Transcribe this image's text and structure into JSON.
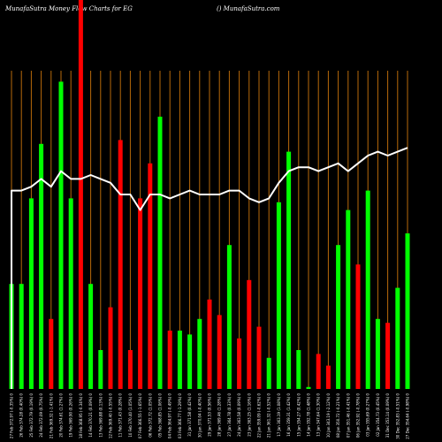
{
  "chart_data": {
    "type": "bar",
    "title_left": "MunafaSutra  Money Flow  Charts for EG",
    "title_right": "() MunafaSutra.com",
    "colors": {
      "up": "#00ff00",
      "down": "#ff0000",
      "line": "#ffffff",
      "grid": "#b86a0a",
      "background": "#000000"
    },
    "ylim": [
      0,
      100
    ],
    "bars": [
      {
        "label": "27 Feb 372.97 (-0.35%) 0",
        "value": 27,
        "color": "up"
      },
      {
        "label": "26 Feb 374.28 (0.40%) 0",
        "value": 27,
        "color": "up"
      },
      {
        "label": "25 Feb 372.79 (0.19%) 0",
        "value": 49,
        "color": "up"
      },
      {
        "label": "24 Feb 372.09 (0.75%) 0",
        "value": 63,
        "color": "up"
      },
      {
        "label": "21 Feb 369.32 (-1.41%) 0",
        "value": 18,
        "color": "down"
      },
      {
        "label": "20 Feb 374.61 (1.27%) 0",
        "value": 79,
        "color": "up"
      },
      {
        "label": "19 Feb 369.90 (0.26%) 0",
        "value": 49,
        "color": "up"
      },
      {
        "label": "18 Feb 368.95 (-0.34%) 0",
        "value": 100,
        "color": "down"
      },
      {
        "label": "14 Feb 370.21 (0.09%) 0",
        "value": 27,
        "color": "up"
      },
      {
        "label": "13 Feb 369.88 (0.13%) 0",
        "value": 10,
        "color": "up"
      },
      {
        "label": "12 Feb 369.40 (-0.55%) 0",
        "value": 21,
        "color": "down"
      },
      {
        "label": "11 Feb 371.43 (0.28%) 0",
        "value": 64,
        "color": "down"
      },
      {
        "label": "10 Feb 370.40 (1.05%) 0",
        "value": 10,
        "color": "down"
      },
      {
        "label": "07 Feb 366.55 (-1.65%) 0",
        "value": 49,
        "color": "down"
      },
      {
        "label": "06 Feb 372.72 (1.05%) 0",
        "value": 58,
        "color": "down"
      },
      {
        "label": "05 Feb 368.85 (1.06%) 0",
        "value": 70,
        "color": "up"
      },
      {
        "label": "04 Feb 364.97 (-0.49%) 0",
        "value": 15,
        "color": "down"
      },
      {
        "label": "03 Feb 366.77 (-1.29%) 0",
        "value": 15,
        "color": "up"
      },
      {
        "label": "31 Jan 371.58 (0.42%) 0",
        "value": 14,
        "color": "up"
      },
      {
        "label": "30 Jan 370.04 (-0.40%) 0",
        "value": 18,
        "color": "up"
      },
      {
        "label": "29 Jan 371.53 (0.56%) 0",
        "value": 23,
        "color": "down"
      },
      {
        "label": "28 Jan 369.46 (1.28%) 0",
        "value": 19,
        "color": "down"
      },
      {
        "label": "27 Jan 364.78 (0.33%) 0",
        "value": 37,
        "color": "up"
      },
      {
        "label": "24 Jan 363.58 (0.09%) 0",
        "value": 13,
        "color": "down"
      },
      {
        "label": "23 Jan 363.25 (1.16%) 0",
        "value": 28,
        "color": "down"
      },
      {
        "label": "22 Jan 359.09 (-0.62%) 0",
        "value": 16,
        "color": "down"
      },
      {
        "label": "21 Jan 361.32 (-0.52%) 0",
        "value": 8,
        "color": "up"
      },
      {
        "label": "17 Jan 363.19 (1.08%) 0",
        "value": 48,
        "color": "up"
      },
      {
        "label": "16 Jan 359.31 (1.42%) 0",
        "value": 61,
        "color": "up"
      },
      {
        "label": "15 Jan 354.27 (0.42%) 0",
        "value": 10,
        "color": "up"
      },
      {
        "label": "14 Jan 352.78 (1.48%) 0",
        "value": 0.5,
        "color": "up"
      },
      {
        "label": "13 Jan 347.64 (1.30%) 0",
        "value": 9,
        "color": "down"
      },
      {
        "label": "10 Jan 343.19 (-2.12%) 0",
        "value": 6,
        "color": "down"
      },
      {
        "label": "08 Jan 350.72 (-0.21%) 0",
        "value": 37,
        "color": "up"
      },
      {
        "label": "07 Jan 351.46 (-0.41%) 0",
        "value": 46,
        "color": "up"
      },
      {
        "label": "06 Jan 352.92 (-0.78%) 0",
        "value": 32,
        "color": "down"
      },
      {
        "label": "03 Jan 355.69 (0.27%) 0",
        "value": 51,
        "color": "up"
      },
      {
        "label": "02 Jan 354.73 (0.45%) 0",
        "value": 18,
        "color": "up"
      },
      {
        "label": "31 Dec 353.14 (0.09%) 0",
        "value": 17,
        "color": "down"
      },
      {
        "label": "30 Dec 352.83 (-0.51%) 0",
        "value": 26,
        "color": "up"
      },
      {
        "label": "27 Dec 354.64 (-0.98%) 0",
        "value": 40,
        "color": "up"
      }
    ],
    "line": [
      51,
      51,
      52,
      54,
      52,
      56,
      54,
      54,
      55,
      54,
      53,
      50,
      50,
      46,
      50,
      50,
      49,
      50,
      51,
      50,
      50,
      50,
      51,
      51,
      49,
      48,
      49,
      53,
      56,
      57,
      57,
      56,
      57,
      58,
      56,
      58,
      60,
      61,
      60,
      61,
      62
    ]
  }
}
